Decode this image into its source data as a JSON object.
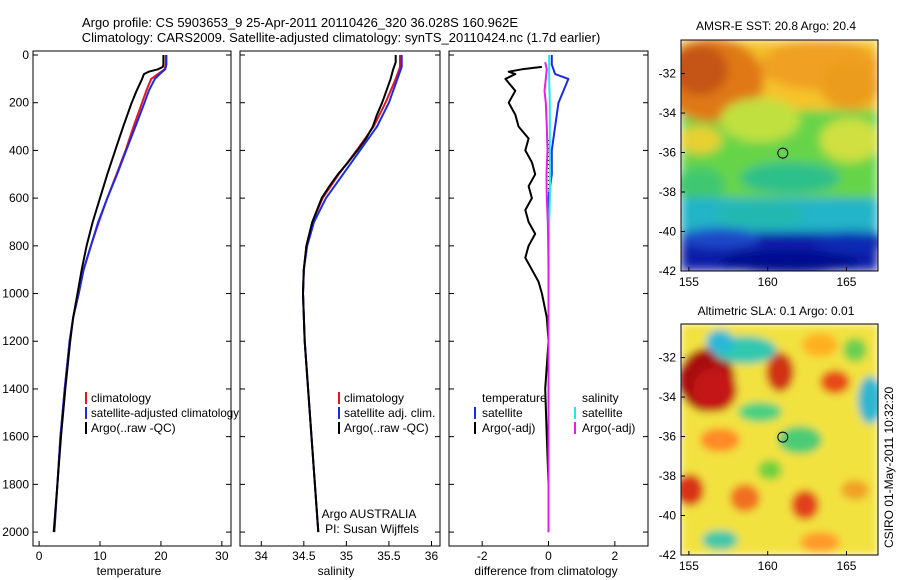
{
  "title": {
    "line1": "Argo profile: CS 5903653_9 25-Apr-2011 20110426_320 36.028S 160.962E",
    "line2": "Climatology: CARS2009. Satellite-adjusted climatology: synTS_20110424.nc (1.7d earlier)"
  },
  "credit": "CSIRO 01-May-2011 10:32:20",
  "colors": {
    "climatology": "#e8141e",
    "satellite": "#1a2be6",
    "argo": "#000000",
    "temp_satellite_diff": "#1a2be6",
    "sal_satellite_diff": "#1fe6f0",
    "sal_argo_diff": "#e61ee6"
  },
  "chart_data": [
    {
      "type": "line",
      "id": "temperature",
      "xlabel": "temperature",
      "ylabel": "",
      "xlim": [
        -1,
        31.5
      ],
      "ylim": [
        0,
        2050
      ],
      "y_inverted": true,
      "x_ticks": [
        0,
        10,
        20,
        30
      ],
      "y_ticks": [
        0,
        200,
        400,
        600,
        800,
        1000,
        1200,
        1400,
        1600,
        1800,
        2000
      ],
      "legend": {
        "position": "lower-right",
        "entries": [
          "climatology",
          "satellite-adjusted climatology",
          "Argo(..raw -QC)"
        ]
      },
      "series": [
        {
          "name": "climatology",
          "color": "#e8141e",
          "depth": [
            0,
            40,
            60,
            80,
            100,
            150,
            200,
            300,
            400,
            500,
            600,
            700,
            800,
            900,
            1000,
            1100,
            1200,
            1400,
            1600,
            1800,
            2000
          ],
          "values": [
            20.8,
            20.8,
            20.6,
            19.5,
            18.4,
            17.6,
            16.9,
            15.5,
            14.2,
            12.7,
            11.2,
            9.8,
            8.5,
            7.3,
            6.5,
            5.6,
            5.0,
            4.2,
            3.5,
            3.0,
            2.5
          ]
        },
        {
          "name": "satellite-adjusted climatology",
          "color": "#1a2be6",
          "depth": [
            0,
            40,
            60,
            80,
            100,
            150,
            200,
            300,
            400,
            500,
            600,
            700,
            800,
            900,
            1000,
            1100,
            1200,
            1400,
            1600,
            1800,
            2000
          ],
          "values": [
            20.9,
            20.9,
            20.7,
            19.8,
            19.0,
            18.0,
            17.3,
            15.8,
            14.3,
            12.8,
            11.2,
            9.7,
            8.5,
            7.3,
            6.5,
            5.6,
            5.0,
            4.2,
            3.5,
            3.0,
            2.5
          ]
        },
        {
          "name": "Argo(..raw -QC)",
          "color": "#000000",
          "depth": [
            0,
            20,
            40,
            50,
            60,
            70,
            80,
            100,
            150,
            200,
            300,
            400,
            500,
            600,
            700,
            800,
            900,
            1000,
            1100,
            1200,
            1400,
            1600,
            1800,
            2000
          ],
          "values": [
            20.4,
            20.4,
            20.4,
            20.3,
            19.5,
            18.0,
            17.2,
            16.9,
            16.0,
            15.2,
            13.8,
            12.5,
            11.2,
            10.0,
            8.8,
            7.8,
            7.0,
            6.3,
            5.6,
            5.1,
            4.3,
            3.6,
            3.0,
            2.4
          ]
        }
      ]
    },
    {
      "type": "line",
      "id": "salinity",
      "xlabel": "salinity",
      "ylabel": "",
      "xlim": [
        33.75,
        36.1
      ],
      "ylim": [
        0,
        2050
      ],
      "y_inverted": true,
      "x_ticks": [
        34,
        34.5,
        35,
        35.5,
        36
      ],
      "legend": {
        "position": "lower-right",
        "entries": [
          "climatology",
          "satellite adj. clim.",
          "Argo(..raw -QC)"
        ]
      },
      "annotation": {
        "line1": "Argo AUSTRALIA",
        "line2": "PI: Susan Wijffels"
      },
      "series": [
        {
          "name": "climatology",
          "color": "#e8141e",
          "depth": [
            0,
            50,
            100,
            200,
            300,
            400,
            500,
            600,
            700,
            800,
            900,
            1000,
            1200,
            1400,
            1600,
            1800,
            2000
          ],
          "values": [
            35.63,
            35.63,
            35.58,
            35.46,
            35.32,
            35.12,
            34.91,
            34.72,
            34.6,
            34.53,
            34.5,
            34.49,
            34.51,
            34.55,
            34.59,
            34.63,
            34.67
          ]
        },
        {
          "name": "satellite adj. clim.",
          "color": "#1a2be6",
          "depth": [
            0,
            50,
            100,
            200,
            300,
            400,
            500,
            600,
            700,
            800,
            900,
            1000,
            1200,
            1400,
            1600,
            1800,
            2000
          ],
          "values": [
            35.65,
            35.65,
            35.6,
            35.5,
            35.36,
            35.16,
            34.96,
            34.76,
            34.62,
            34.54,
            34.5,
            34.49,
            34.51,
            34.55,
            34.59,
            34.63,
            34.67
          ]
        },
        {
          "name": "Argo(..raw -QC)",
          "color": "#000000",
          "depth": [
            0,
            30,
            60,
            100,
            150,
            200,
            250,
            300,
            350,
            400,
            450,
            500,
            550,
            600,
            700,
            800,
            900,
            1000,
            1200,
            1400,
            1600,
            1800,
            2000
          ],
          "values": [
            35.58,
            35.58,
            35.55,
            35.52,
            35.47,
            35.42,
            35.36,
            35.31,
            35.23,
            35.13,
            35.02,
            34.9,
            34.8,
            34.71,
            34.6,
            34.53,
            34.5,
            34.49,
            34.51,
            34.55,
            34.59,
            34.63,
            34.67
          ]
        }
      ]
    },
    {
      "type": "line",
      "id": "difference",
      "xlabel": "difference from climatology",
      "ylabel": "",
      "xlim": [
        -3.0,
        3.0
      ],
      "ylim": [
        0,
        2050
      ],
      "y_inverted": true,
      "x_ticks": [
        -2,
        0,
        2
      ],
      "legend": {
        "position": "lower-center",
        "group_titles": [
          "temperature",
          "salinity"
        ],
        "entries": [
          "satellite",
          "Argo(-adj)",
          "satellite",
          "Argo(-adj)"
        ]
      },
      "series": [
        {
          "name": "temperature Argo(-adj)",
          "color": "#000000",
          "depth": [
            50,
            60,
            70,
            80,
            100,
            150,
            200,
            250,
            300,
            350,
            400,
            450,
            500,
            550,
            600,
            650,
            700,
            750,
            800,
            850,
            900,
            950,
            1000,
            1100,
            1200,
            1400,
            1600,
            1800,
            2000
          ],
          "values": [
            -0.2,
            -0.8,
            -1.2,
            -1.0,
            -1.3,
            -1.0,
            -1.2,
            -1.0,
            -0.9,
            -0.6,
            -0.7,
            -0.5,
            -0.4,
            -0.6,
            -0.5,
            -0.7,
            -0.6,
            -0.4,
            -0.6,
            -0.7,
            -0.5,
            -0.3,
            -0.2,
            -0.05,
            0.0,
            -0.1,
            -0.05,
            0.0,
            0.0
          ]
        },
        {
          "name": "temperature satellite",
          "color": "#1a2be6",
          "depth": [
            0,
            40,
            80,
            100,
            200,
            300,
            400,
            500,
            600,
            800,
            1000,
            1200,
            1400,
            1600,
            1800,
            2000
          ],
          "values": [
            0.1,
            0.1,
            0.2,
            0.6,
            0.3,
            0.2,
            0.1,
            0.1,
            0.0,
            0.0,
            0.0,
            0.0,
            0.0,
            0.0,
            0.0,
            0.0
          ]
        },
        {
          "name": "salinity satellite",
          "color": "#1fe6f0",
          "depth": [
            0,
            50,
            100,
            200,
            300,
            400,
            500,
            600,
            700,
            800,
            1000,
            1200,
            1400,
            1600,
            1800,
            2000
          ],
          "values": [
            0.02,
            0.02,
            0.02,
            0.04,
            0.04,
            0.04,
            0.05,
            0.04,
            0.02,
            0.01,
            0.0,
            0.0,
            0.0,
            0.0,
            0.0,
            0.0
          ]
        },
        {
          "name": "salinity Argo(-adj)",
          "color": "#e61ee6",
          "depth": [
            30,
            60,
            100,
            150,
            200,
            300,
            400,
            500,
            600,
            700,
            800,
            900,
            1000,
            1200,
            1400,
            1600,
            1800,
            2000
          ],
          "values": [
            -0.1,
            -0.05,
            -0.08,
            -0.12,
            -0.08,
            -0.05,
            -0.03,
            -0.06,
            -0.05,
            -0.02,
            -0.01,
            0.0,
            0.0,
            0.0,
            0.0,
            0.0,
            0.0,
            0.0
          ]
        }
      ]
    },
    {
      "type": "heatmap",
      "id": "sst_map",
      "title": "AMSR-E SST: 20.8 Argo: 20.4",
      "xlim": [
        154.5,
        167.0
      ],
      "ylim": [
        -42.0,
        -30.3
      ],
      "x_ticks": [
        155,
        160,
        165
      ],
      "y_ticks": [
        -32,
        -34,
        -36,
        -38,
        -40,
        -42
      ],
      "marker": {
        "lon": 160.962,
        "lat": -36.028
      }
    },
    {
      "type": "heatmap",
      "id": "sla_map",
      "title": "Altimetric SLA: 0.1 Argo: 0.01",
      "xlim": [
        154.5,
        167.0
      ],
      "ylim": [
        -42.0,
        -30.3
      ],
      "x_ticks": [
        155,
        160,
        165
      ],
      "y_ticks": [
        -32,
        -34,
        -36,
        -38,
        -40,
        -42
      ],
      "marker": {
        "lon": 160.962,
        "lat": -36.028
      }
    }
  ]
}
